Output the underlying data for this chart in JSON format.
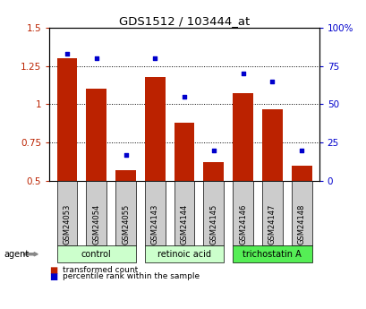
{
  "title": "GDS1512 / 103444_at",
  "samples": [
    "GSM24053",
    "GSM24054",
    "GSM24055",
    "GSM24143",
    "GSM24144",
    "GSM24145",
    "GSM24146",
    "GSM24147",
    "GSM24148"
  ],
  "bar_values": [
    1.3,
    1.1,
    0.57,
    1.18,
    0.88,
    0.62,
    1.07,
    0.97,
    0.6
  ],
  "scatter_values_pct": [
    83,
    80,
    17,
    80,
    55,
    20,
    70,
    65,
    20
  ],
  "bar_color": "#bb2200",
  "scatter_color": "#0000cc",
  "ylim_left": [
    0.5,
    1.5
  ],
  "ylim_right": [
    0,
    100
  ],
  "yticks_left": [
    0.5,
    0.75,
    1.0,
    1.25,
    1.5
  ],
  "ytick_labels_left": [
    "0.5",
    "0.75",
    "1",
    "1.25",
    "1.5"
  ],
  "yticks_right": [
    0,
    25,
    50,
    75,
    100
  ],
  "ytick_labels_right": [
    "0",
    "25",
    "50",
    "75",
    "100%"
  ],
  "groups": [
    {
      "label": "control",
      "indices": [
        0,
        1,
        2
      ],
      "color": "#ccffcc"
    },
    {
      "label": "retinoic acid",
      "indices": [
        3,
        4,
        5
      ],
      "color": "#ccffcc"
    },
    {
      "label": "trichostatin A",
      "indices": [
        6,
        7,
        8
      ],
      "color": "#55ee55"
    }
  ],
  "agent_label": "agent",
  "legend_bar_label": "transformed count",
  "legend_scatter_label": "percentile rank within the sample",
  "bar_width": 0.7,
  "background_color": "#ffffff",
  "sample_box_color": "#cccccc"
}
